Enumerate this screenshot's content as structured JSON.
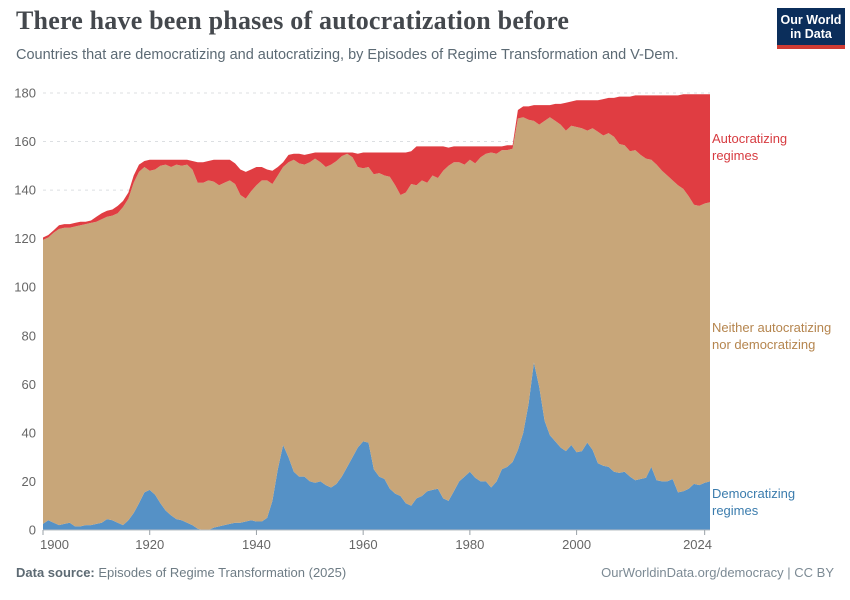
{
  "header": {
    "logo": {
      "line1": "Our World",
      "line2": "in Data"
    }
  },
  "footer": {
    "source_label": "Data source:",
    "source_value": " Episodes of Regime Transformation (2025)",
    "credit": "OurWorldinData.org/democracy | CC BY"
  },
  "chart_data": {
    "type": "area",
    "stacked": true,
    "title": "There have been phases of autocratization before",
    "subtitle": "Countries that are democratizing and autocratizing, by Episodes of Regime Transformation and V-Dem.",
    "x_start": 1900,
    "x_end": 2025,
    "xlim": [
      1900,
      2025
    ],
    "ylim": [
      0,
      180
    ],
    "grid": "dashed-horizontal",
    "legend_position": "right",
    "yticks": [
      0,
      20,
      40,
      60,
      80,
      100,
      120,
      140,
      160,
      180
    ],
    "xticks": [
      1900,
      1920,
      1940,
      1960,
      1980,
      2000,
      2024
    ],
    "axis_color": "#b6bcc1",
    "tick_label_color": "#666666",
    "grid_color": "#dcdfe2",
    "series": [
      {
        "name": "Democratizing regimes",
        "color": "#5591c6",
        "label_color": "#3b7cad",
        "values": [
          2.5,
          4,
          3,
          2,
          2.5,
          3,
          1.5,
          1.5,
          2,
          2,
          2.5,
          3,
          4.5,
          4,
          3,
          2,
          4,
          7,
          11,
          15.5,
          16.5,
          14.5,
          11,
          8,
          6,
          4.5,
          4,
          3,
          2,
          0.5,
          0,
          0,
          1,
          1.5,
          2,
          2.5,
          3,
          3,
          3.5,
          4,
          3.5,
          3.5,
          5,
          12,
          25,
          35,
          30,
          24,
          22,
          22,
          20,
          19.5,
          20,
          18.5,
          17.5,
          19,
          22,
          26,
          30,
          34,
          36.5,
          36,
          25,
          22,
          21,
          17,
          15,
          14,
          11,
          10,
          13,
          14,
          16,
          16.5,
          17,
          13,
          12,
          16,
          20,
          22,
          24,
          21.5,
          20,
          20,
          17.5,
          20,
          25,
          26,
          28,
          33,
          40,
          52,
          69,
          59,
          45,
          39,
          36.5,
          34,
          32.5,
          35,
          32,
          32.5,
          36,
          33,
          27.5,
          26.5,
          26,
          24,
          23.5,
          24,
          22,
          20.5,
          21,
          21.5,
          26,
          20.5,
          20,
          20,
          21,
          15.5,
          16,
          17,
          19,
          18.5,
          19.5,
          20
        ]
      },
      {
        "name": "Neither autocratizing nor democratizing",
        "color": "#c8a679",
        "label_color": "#b5854e",
        "values": [
          117,
          116.5,
          119.5,
          122,
          122,
          121.5,
          123.5,
          124,
          124,
          124.5,
          124.5,
          125,
          124.5,
          125.5,
          127.5,
          131,
          132.5,
          136,
          136.5,
          134,
          131.5,
          134,
          139,
          142.5,
          143.5,
          146,
          146,
          147.5,
          146.5,
          142.5,
          143,
          144,
          142.5,
          140.5,
          141,
          141.5,
          139.5,
          135,
          133,
          135.5,
          138.5,
          140.5,
          139,
          130.5,
          121,
          114.5,
          121.5,
          128.5,
          129,
          128.5,
          131.5,
          133.5,
          131.5,
          131,
          133,
          133,
          132,
          129,
          123.5,
          115.5,
          112.5,
          113.5,
          121.5,
          125,
          125,
          128.5,
          127,
          124,
          128,
          132.5,
          129,
          130,
          127,
          129.5,
          128,
          135,
          138,
          135.5,
          131.5,
          128.5,
          128.5,
          129.5,
          133.5,
          135,
          138,
          135,
          131.5,
          130.5,
          129,
          136.5,
          130,
          117,
          99.5,
          108,
          123.5,
          131,
          132,
          133,
          132,
          131.5,
          134,
          133,
          128.5,
          132.5,
          136.5,
          136,
          137.5,
          138,
          135.5,
          134.5,
          134,
          136,
          133.5,
          131.5,
          126.5,
          130,
          128,
          126,
          123,
          126.5,
          124.5,
          120.5,
          115,
          115,
          115,
          115
        ]
      },
      {
        "name": "Autocratizing regimes",
        "color": "#e03d42",
        "label_color": "#d73b40",
        "values": [
          1,
          1,
          1,
          1.5,
          1.5,
          1.5,
          1.5,
          1.5,
          1,
          1,
          2,
          2.5,
          2.5,
          2.5,
          3,
          2.5,
          2.5,
          3,
          3,
          2.5,
          4.5,
          4,
          2.5,
          2,
          3,
          2,
          2.5,
          2,
          3.5,
          8.5,
          8.5,
          8,
          9,
          10.5,
          9.5,
          8.5,
          8.5,
          10.5,
          11,
          9,
          7.5,
          5.5,
          4.5,
          5.5,
          3.5,
          2,
          3,
          2.5,
          4,
          4,
          3.5,
          2.5,
          4,
          6,
          5,
          3.5,
          1.5,
          0.5,
          2,
          5.5,
          6.5,
          6,
          9,
          8.5,
          9.5,
          10,
          13.5,
          17.5,
          16.5,
          13.5,
          16,
          14,
          15,
          12,
          13,
          10,
          7.5,
          6.5,
          6.5,
          7.5,
          5.5,
          7,
          4.5,
          3,
          2.5,
          3,
          1.5,
          2,
          1.5,
          3.5,
          4.5,
          5.5,
          6.5,
          8,
          6.5,
          5,
          7,
          8.5,
          11.5,
          10,
          11,
          11.5,
          12.5,
          11.5,
          13,
          15,
          14.5,
          16,
          19.5,
          20,
          22.5,
          22.5,
          24.5,
          26,
          26.5,
          28.5,
          31,
          33,
          35,
          37,
          39,
          42,
          45.5,
          46,
          45,
          44.5
        ]
      }
    ]
  }
}
